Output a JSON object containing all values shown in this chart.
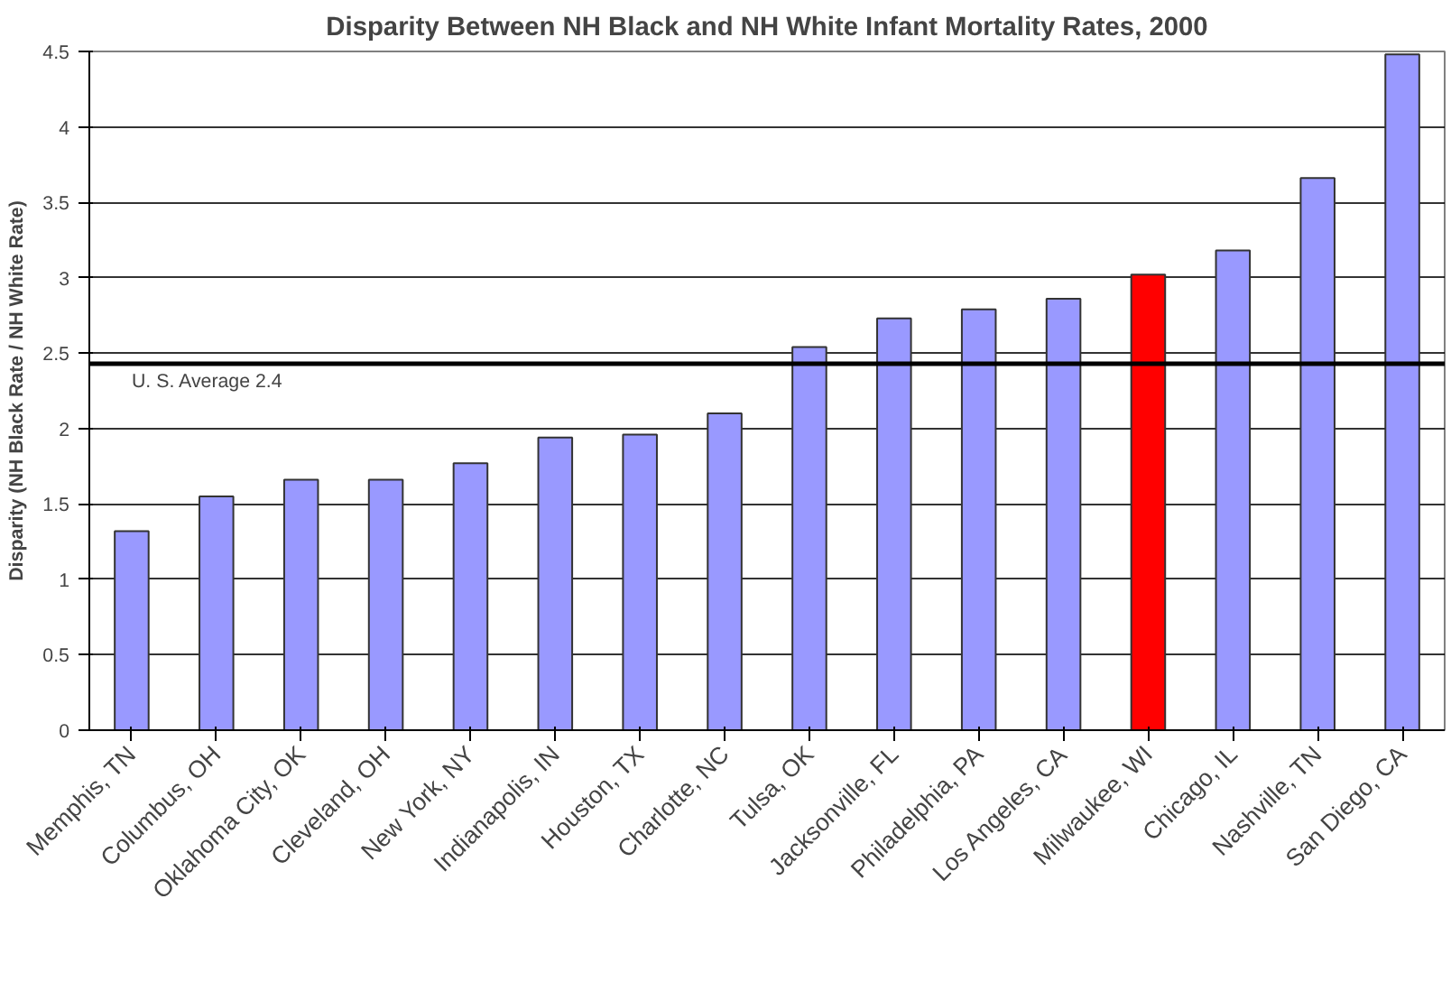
{
  "chart_data": {
    "type": "bar",
    "title": "Disparity Between NH Black and NH White Infant Mortality Rates, 2000",
    "ylabel": "Disparity (NH Black Rate / NH White Rate)",
    "categories": [
      "Memphis, TN",
      "Columbus, OH",
      "Oklahoma City, OK",
      "Cleveland, OH",
      "New York, NY",
      "Indianapolis, IN",
      "Houston, TX",
      "Charlotte, NC",
      "Tulsa, OK",
      "Jacksonville, FL",
      "Philadelphia, PA",
      "Los Angeles, CA",
      "Milwaukee, WI",
      "Chicago, IL",
      "Nashville, TN",
      "San Diego, CA"
    ],
    "values": [
      1.32,
      1.55,
      1.66,
      1.66,
      1.77,
      1.94,
      1.96,
      2.1,
      2.54,
      2.73,
      2.79,
      2.86,
      3.02,
      3.18,
      3.66,
      4.48
    ],
    "colors": [
      "#9999ff",
      "#9999ff",
      "#9999ff",
      "#9999ff",
      "#9999ff",
      "#9999ff",
      "#9999ff",
      "#9999ff",
      "#9999ff",
      "#9999ff",
      "#9999ff",
      "#9999ff",
      "#ff0000",
      "#9999ff",
      "#9999ff",
      "#9999ff"
    ],
    "ylim": [
      0,
      4.5
    ],
    "yticks": [
      0,
      0.5,
      1,
      1.5,
      2,
      2.5,
      3,
      3.5,
      4,
      4.5
    ],
    "grid": "y",
    "ref_lines": [
      {
        "axis": "y",
        "value": 2.43,
        "label": "U. S. Average 2.4",
        "color": "#000000"
      }
    ]
  }
}
